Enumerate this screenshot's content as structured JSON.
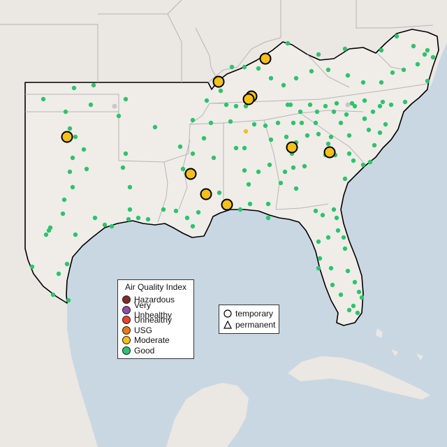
{
  "legend": {
    "title": "Air Quality Index",
    "categories": [
      {
        "label": "Hazardous",
        "color": "#7e2b2b"
      },
      {
        "label": "Very Unhealthy",
        "color": "#8e4ea6"
      },
      {
        "label": "Unhealthy",
        "color": "#e8452b"
      },
      {
        "label": "USG",
        "color": "#ec7b16"
      },
      {
        "label": "Moderate",
        "color": "#f5c017"
      },
      {
        "label": "Good",
        "color": "#2dc36d"
      }
    ]
  },
  "monitor_types": [
    {
      "label": "temporary",
      "symbol": "circle"
    },
    {
      "label": "permanent",
      "symbol": "triangle"
    }
  ],
  "map": {
    "region": "Southeastern United States",
    "colors": {
      "land": "#ebe7e3",
      "focus_land": "#f0ede9",
      "water": "#c9d7e2",
      "state_border": "#b5b5b5",
      "region_outline": "#000000",
      "no_data": "#c8c8c8"
    }
  }
}
